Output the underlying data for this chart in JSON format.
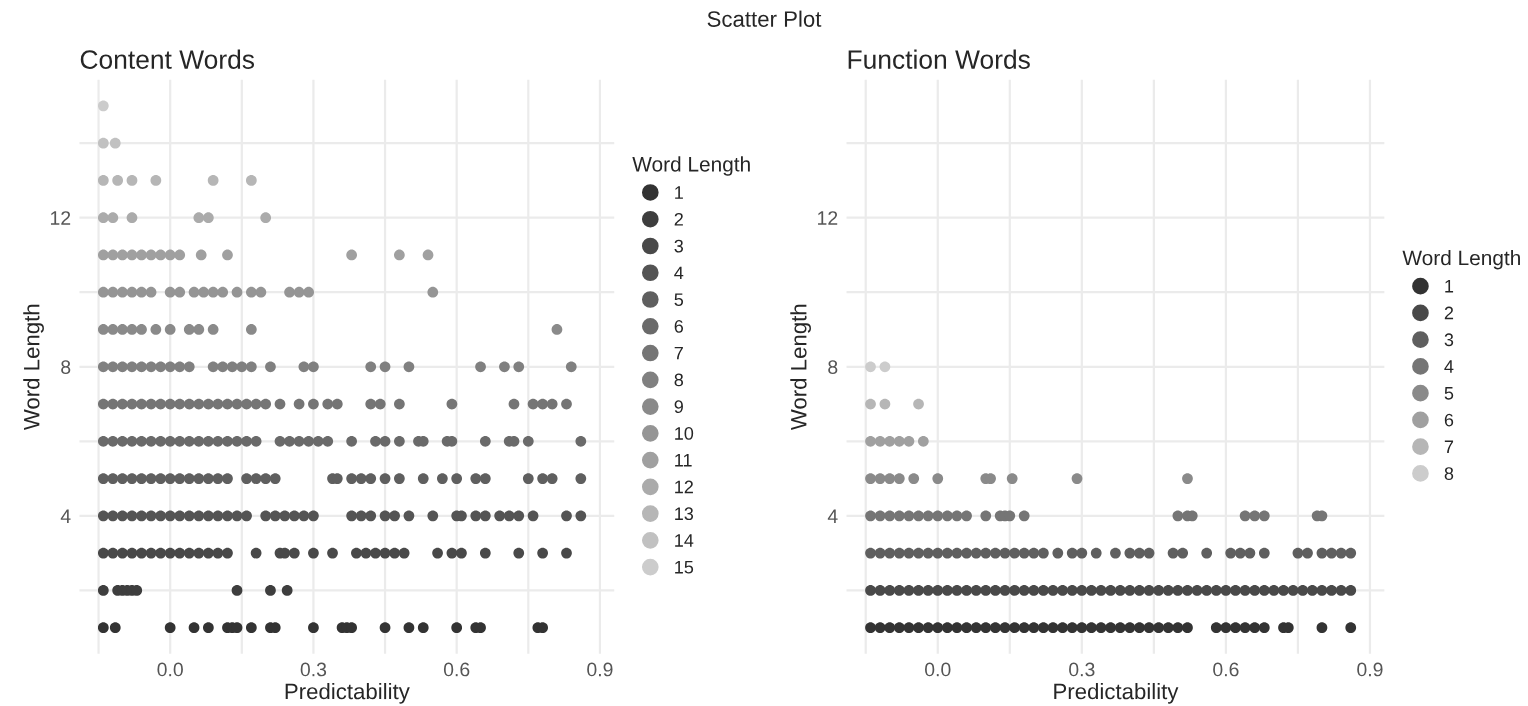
{
  "chart_data": [
    {
      "type": "scatter",
      "title": "Content Words",
      "xlabel": "Predictability",
      "ylabel": "Word Length",
      "legend_title": "Word Length",
      "legend": "right",
      "marker": "circle",
      "grid": true,
      "annotations": [
        "Scatter Plot"
      ],
      "xlim": [
        -0.19,
        0.93
      ],
      "ylim": [
        0.3,
        15.7
      ],
      "xticks": [
        {
          "value": -0.15,
          "label": null
        },
        {
          "value": 0,
          "label": "0.0"
        },
        {
          "value": 0.15,
          "label": null
        },
        {
          "value": 0.3,
          "label": "0.3"
        },
        {
          "value": 0.45,
          "label": null
        },
        {
          "value": 0.6,
          "label": "0.6"
        },
        {
          "value": 0.75,
          "label": null
        },
        {
          "value": 0.9,
          "label": "0.9"
        }
      ],
      "yticks": [
        {
          "value": 2,
          "label": null
        },
        4,
        {
          "value": 6,
          "label": null
        },
        8,
        {
          "value": 10,
          "label": null
        },
        12,
        {
          "value": 14,
          "label": null
        }
      ],
      "series": [
        {
          "name": "1",
          "color": "#333333",
          "x": [
            -0.14,
            -0.115,
            0.0,
            0.05,
            0.08,
            0.12,
            0.13,
            0.14,
            0.17,
            0.21,
            0.22,
            0.3,
            0.36,
            0.37,
            0.38,
            0.45,
            0.5,
            0.53,
            0.6,
            0.64,
            0.65,
            0.77,
            0.78
          ],
          "values": [
            1,
            1,
            1,
            1,
            1,
            1,
            1,
            1,
            1,
            1,
            1,
            1,
            1,
            1,
            1,
            1,
            1,
            1,
            1,
            1,
            1,
            1,
            1
          ]
        },
        {
          "name": "2",
          "color": "#3e3e3e",
          "x": [
            -0.14,
            -0.11,
            -0.1,
            -0.09,
            -0.08,
            -0.07,
            0.14,
            0.21,
            0.245
          ],
          "values": [
            2,
            2,
            2,
            2,
            2,
            2,
            2,
            2,
            2
          ]
        },
        {
          "name": "3",
          "color": "#494949",
          "x": [
            -0.14,
            -0.12,
            -0.1,
            -0.08,
            -0.06,
            -0.04,
            -0.02,
            0,
            0.02,
            0.04,
            0.06,
            0.08,
            0.1,
            0.12,
            0.18,
            0.23,
            0.24,
            0.26,
            0.3,
            0.34,
            0.39,
            0.41,
            0.43,
            0.45,
            0.47,
            0.49,
            0.56,
            0.59,
            0.61,
            0.66,
            0.73,
            0.78,
            0.83
          ],
          "values": [
            3,
            3,
            3,
            3,
            3,
            3,
            3,
            3,
            3,
            3,
            3,
            3,
            3,
            3,
            3,
            3,
            3,
            3,
            3,
            3,
            3,
            3,
            3,
            3,
            3,
            3,
            3,
            3,
            3,
            3,
            3,
            3,
            3
          ]
        },
        {
          "name": "4",
          "color": "#545454",
          "x": [
            -0.14,
            -0.12,
            -0.1,
            -0.08,
            -0.06,
            -0.04,
            -0.02,
            0,
            0.02,
            0.04,
            0.06,
            0.08,
            0.1,
            0.12,
            0.14,
            0.16,
            0.2,
            0.22,
            0.24,
            0.26,
            0.28,
            0.3,
            0.38,
            0.4,
            0.42,
            0.45,
            0.47,
            0.5,
            0.55,
            0.6,
            0.61,
            0.64,
            0.66,
            0.69,
            0.71,
            0.73,
            0.76,
            0.83,
            0.86
          ],
          "values": [
            4,
            4,
            4,
            4,
            4,
            4,
            4,
            4,
            4,
            4,
            4,
            4,
            4,
            4,
            4,
            4,
            4,
            4,
            4,
            4,
            4,
            4,
            4,
            4,
            4,
            4,
            4,
            4,
            4,
            4,
            4,
            4,
            4,
            4,
            4,
            4,
            4,
            4,
            4
          ]
        },
        {
          "name": "5",
          "color": "#5f5f5f",
          "x": [
            -0.14,
            -0.12,
            -0.1,
            -0.08,
            -0.06,
            -0.04,
            -0.02,
            0,
            0.02,
            0.04,
            0.06,
            0.08,
            0.1,
            0.12,
            0.16,
            0.18,
            0.2,
            0.22,
            0.34,
            0.35,
            0.38,
            0.4,
            0.42,
            0.45,
            0.48,
            0.53,
            0.57,
            0.6,
            0.64,
            0.66,
            0.75,
            0.78,
            0.8,
            0.86
          ],
          "values": [
            5,
            5,
            5,
            5,
            5,
            5,
            5,
            5,
            5,
            5,
            5,
            5,
            5,
            5,
            5,
            5,
            5,
            5,
            5,
            5,
            5,
            5,
            5,
            5,
            5,
            5,
            5,
            5,
            5,
            5,
            5,
            5,
            5,
            5
          ]
        },
        {
          "name": "6",
          "color": "#6a6a6a",
          "x": [
            -0.14,
            -0.12,
            -0.1,
            -0.08,
            -0.06,
            -0.04,
            -0.02,
            0,
            0.02,
            0.04,
            0.06,
            0.08,
            0.1,
            0.12,
            0.14,
            0.16,
            0.18,
            0.23,
            0.25,
            0.27,
            0.29,
            0.31,
            0.33,
            0.38,
            0.43,
            0.45,
            0.48,
            0.52,
            0.53,
            0.58,
            0.59,
            0.66,
            0.71,
            0.72,
            0.75,
            0.86
          ],
          "values": [
            6,
            6,
            6,
            6,
            6,
            6,
            6,
            6,
            6,
            6,
            6,
            6,
            6,
            6,
            6,
            6,
            6,
            6,
            6,
            6,
            6,
            6,
            6,
            6,
            6,
            6,
            6,
            6,
            6,
            6,
            6,
            6,
            6,
            6,
            6,
            6
          ]
        },
        {
          "name": "7",
          "color": "#757575",
          "x": [
            -0.14,
            -0.12,
            -0.1,
            -0.08,
            -0.06,
            -0.04,
            -0.02,
            0,
            0.02,
            0.04,
            0.06,
            0.08,
            0.1,
            0.12,
            0.14,
            0.16,
            0.18,
            0.2,
            0.23,
            0.27,
            0.3,
            0.33,
            0.35,
            0.42,
            0.44,
            0.48,
            0.59,
            0.72,
            0.76,
            0.78,
            0.8,
            0.83
          ],
          "values": [
            7,
            7,
            7,
            7,
            7,
            7,
            7,
            7,
            7,
            7,
            7,
            7,
            7,
            7,
            7,
            7,
            7,
            7,
            7,
            7,
            7,
            7,
            7,
            7,
            7,
            7,
            7,
            7,
            7,
            7,
            7,
            7
          ]
        },
        {
          "name": "8",
          "color": "#808080",
          "x": [
            -0.14,
            -0.12,
            -0.1,
            -0.08,
            -0.06,
            -0.04,
            -0.02,
            0,
            0.02,
            0.04,
            0.09,
            0.11,
            0.13,
            0.15,
            0.17,
            0.21,
            0.28,
            0.3,
            0.42,
            0.45,
            0.5,
            0.65,
            0.7,
            0.73,
            0.84
          ],
          "values": [
            8,
            8,
            8,
            8,
            8,
            8,
            8,
            8,
            8,
            8,
            8,
            8,
            8,
            8,
            8,
            8,
            8,
            8,
            8,
            8,
            8,
            8,
            8,
            8,
            8
          ]
        },
        {
          "name": "9",
          "color": "#8a8a8a",
          "x": [
            -0.14,
            -0.12,
            -0.1,
            -0.08,
            -0.06,
            -0.03,
            0,
            0.04,
            0.06,
            0.09,
            0.17,
            0.81
          ],
          "values": [
            9,
            9,
            9,
            9,
            9,
            9,
            9,
            9,
            9,
            9,
            9,
            9
          ]
        },
        {
          "name": "10",
          "color": "#959595",
          "x": [
            -0.14,
            -0.12,
            -0.1,
            -0.08,
            -0.06,
            -0.04,
            0,
            0.02,
            0.05,
            0.07,
            0.09,
            0.11,
            0.14,
            0.17,
            0.19,
            0.25,
            0.27,
            0.29,
            0.55
          ],
          "values": [
            10,
            10,
            10,
            10,
            10,
            10,
            10,
            10,
            10,
            10,
            10,
            10,
            10,
            10,
            10,
            10,
            10,
            10,
            10
          ]
        },
        {
          "name": "11",
          "color": "#a0a0a0",
          "x": [
            -0.14,
            -0.12,
            -0.1,
            -0.08,
            -0.06,
            -0.04,
            -0.02,
            0,
            0.02,
            0.065,
            0.12,
            0.38,
            0.48,
            0.54
          ],
          "values": [
            11,
            11,
            11,
            11,
            11,
            11,
            11,
            11,
            11,
            11,
            11,
            11,
            11,
            11
          ]
        },
        {
          "name": "12",
          "color": "#ababab",
          "x": [
            -0.14,
            -0.12,
            -0.08,
            0.06,
            0.08,
            0.2
          ],
          "values": [
            12,
            12,
            12,
            12,
            12,
            12
          ]
        },
        {
          "name": "13",
          "color": "#b6b6b6",
          "x": [
            -0.14,
            -0.11,
            -0.08,
            -0.03,
            0.09,
            0.17
          ],
          "values": [
            13,
            13,
            13,
            13,
            13,
            13
          ]
        },
        {
          "name": "14",
          "color": "#c1c1c1",
          "x": [
            -0.14,
            -0.115
          ],
          "values": [
            14,
            14
          ]
        },
        {
          "name": "15",
          "color": "#cccccc",
          "x": [
            -0.14
          ],
          "values": [
            15
          ]
        }
      ]
    },
    {
      "type": "scatter",
      "title": "Function Words",
      "xlabel": "Predictability",
      "ylabel": "Word Length",
      "legend_title": "Word Length",
      "legend": "right",
      "marker": "circle",
      "grid": true,
      "xlim": [
        -0.19,
        0.93
      ],
      "ylim": [
        0.3,
        15.7
      ],
      "xticks": [
        {
          "value": -0.15,
          "label": null
        },
        {
          "value": 0,
          "label": "0.0"
        },
        {
          "value": 0.15,
          "label": null
        },
        {
          "value": 0.3,
          "label": "0.3"
        },
        {
          "value": 0.45,
          "label": null
        },
        {
          "value": 0.6,
          "label": "0.6"
        },
        {
          "value": 0.75,
          "label": null
        },
        {
          "value": 0.9,
          "label": "0.9"
        }
      ],
      "yticks": [
        {
          "value": 2,
          "label": null
        },
        4,
        {
          "value": 6,
          "label": null
        },
        8,
        {
          "value": 10,
          "label": null
        },
        12,
        {
          "value": 14,
          "label": null
        }
      ],
      "series": [
        {
          "name": "1",
          "color": "#333333",
          "x": [
            -0.14,
            -0.12,
            -0.1,
            -0.08,
            -0.06,
            -0.04,
            -0.02,
            0,
            0.02,
            0.04,
            0.06,
            0.08,
            0.1,
            0.12,
            0.14,
            0.16,
            0.18,
            0.2,
            0.22,
            0.24,
            0.26,
            0.28,
            0.3,
            0.32,
            0.34,
            0.36,
            0.38,
            0.4,
            0.42,
            0.44,
            0.46,
            0.48,
            0.5,
            0.52,
            0.58,
            0.6,
            0.62,
            0.64,
            0.66,
            0.68,
            0.72,
            0.73,
            0.8,
            0.86
          ],
          "values": [
            1,
            1,
            1,
            1,
            1,
            1,
            1,
            1,
            1,
            1,
            1,
            1,
            1,
            1,
            1,
            1,
            1,
            1,
            1,
            1,
            1,
            1,
            1,
            1,
            1,
            1,
            1,
            1,
            1,
            1,
            1,
            1,
            1,
            1,
            1,
            1,
            1,
            1,
            1,
            1,
            1,
            1,
            1,
            1
          ]
        },
        {
          "name": "2",
          "color": "#494949",
          "x": [
            -0.14,
            -0.12,
            -0.1,
            -0.08,
            -0.06,
            -0.04,
            -0.02,
            0,
            0.02,
            0.04,
            0.06,
            0.08,
            0.1,
            0.12,
            0.14,
            0.16,
            0.18,
            0.2,
            0.22,
            0.24,
            0.26,
            0.28,
            0.3,
            0.32,
            0.34,
            0.36,
            0.38,
            0.4,
            0.42,
            0.44,
            0.46,
            0.48,
            0.5,
            0.52,
            0.54,
            0.56,
            0.58,
            0.6,
            0.62,
            0.64,
            0.66,
            0.68,
            0.7,
            0.72,
            0.74,
            0.76,
            0.78,
            0.8,
            0.82,
            0.84,
            0.86
          ],
          "values": [
            2,
            2,
            2,
            2,
            2,
            2,
            2,
            2,
            2,
            2,
            2,
            2,
            2,
            2,
            2,
            2,
            2,
            2,
            2,
            2,
            2,
            2,
            2,
            2,
            2,
            2,
            2,
            2,
            2,
            2,
            2,
            2,
            2,
            2,
            2,
            2,
            2,
            2,
            2,
            2,
            2,
            2,
            2,
            2,
            2,
            2,
            2,
            2,
            2,
            2,
            2
          ]
        },
        {
          "name": "3",
          "color": "#5f5f5f",
          "x": [
            -0.14,
            -0.12,
            -0.1,
            -0.08,
            -0.06,
            -0.04,
            -0.02,
            0,
            0.02,
            0.04,
            0.06,
            0.08,
            0.1,
            0.12,
            0.14,
            0.16,
            0.18,
            0.2,
            0.22,
            0.25,
            0.28,
            0.3,
            0.33,
            0.37,
            0.4,
            0.42,
            0.44,
            0.49,
            0.51,
            0.56,
            0.61,
            0.63,
            0.65,
            0.68,
            0.75,
            0.77,
            0.8,
            0.82,
            0.84,
            0.86
          ],
          "values": [
            3,
            3,
            3,
            3,
            3,
            3,
            3,
            3,
            3,
            3,
            3,
            3,
            3,
            3,
            3,
            3,
            3,
            3,
            3,
            3,
            3,
            3,
            3,
            3,
            3,
            3,
            3,
            3,
            3,
            3,
            3,
            3,
            3,
            3,
            3,
            3,
            3,
            3,
            3,
            3
          ]
        },
        {
          "name": "4",
          "color": "#757575",
          "x": [
            -0.14,
            -0.12,
            -0.1,
            -0.08,
            -0.06,
            -0.04,
            -0.02,
            0,
            0.02,
            0.04,
            0.06,
            0.1,
            0.13,
            0.14,
            0.15,
            0.18,
            0.5,
            0.52,
            0.53,
            0.64,
            0.66,
            0.68,
            0.79,
            0.8
          ],
          "values": [
            4,
            4,
            4,
            4,
            4,
            4,
            4,
            4,
            4,
            4,
            4,
            4,
            4,
            4,
            4,
            4,
            4,
            4,
            4,
            4,
            4,
            4,
            4,
            4
          ]
        },
        {
          "name": "5",
          "color": "#8a8a8a",
          "x": [
            -0.14,
            -0.12,
            -0.1,
            -0.08,
            -0.05,
            0,
            0.1,
            0.11,
            0.155,
            0.29,
            0.52
          ],
          "values": [
            5,
            5,
            5,
            5,
            5,
            5,
            5,
            5,
            5,
            5,
            5
          ]
        },
        {
          "name": "6",
          "color": "#a0a0a0",
          "x": [
            -0.14,
            -0.12,
            -0.1,
            -0.08,
            -0.06,
            -0.03
          ],
          "values": [
            6,
            6,
            6,
            6,
            6,
            6
          ]
        },
        {
          "name": "7",
          "color": "#b6b6b6",
          "x": [
            -0.14,
            -0.11,
            -0.04
          ],
          "values": [
            7,
            7,
            7
          ]
        },
        {
          "name": "8",
          "color": "#cccccc",
          "x": [
            -0.14,
            -0.11
          ],
          "values": [
            8,
            8
          ]
        }
      ]
    }
  ]
}
